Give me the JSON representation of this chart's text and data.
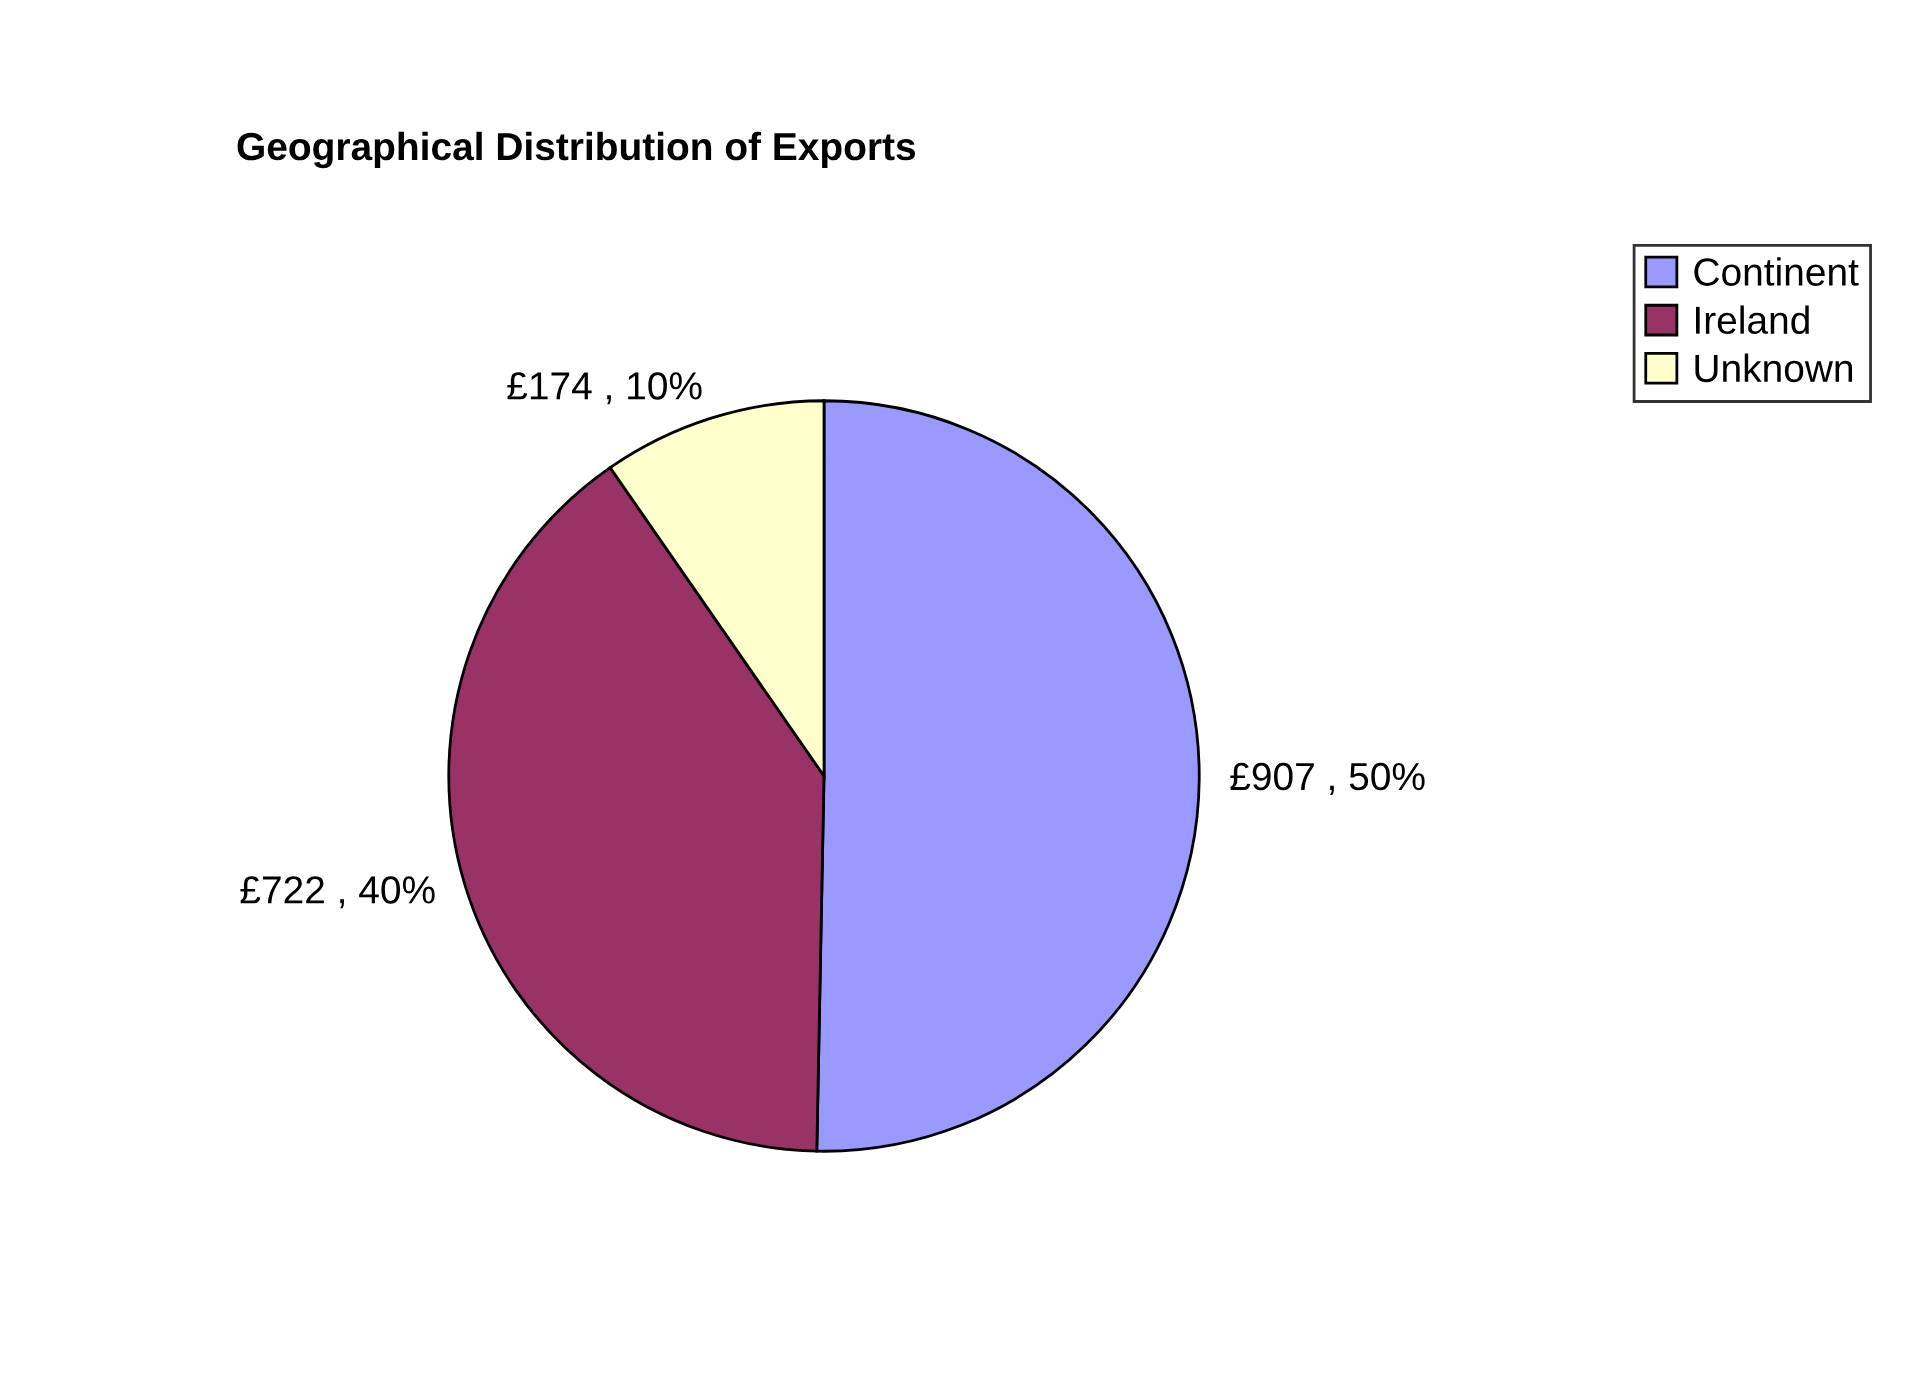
{
  "chart_data": {
    "type": "pie",
    "title": "Geographical Distribution of Exports",
    "categories": [
      "Continent",
      "Ireland",
      "Unknown"
    ],
    "values": [
      907,
      722,
      174
    ],
    "colors": [
      "#9999ff",
      "#993366",
      "#ffffcc"
    ],
    "value_labels": [
      "£907 , 50%",
      "£722 , 40%",
      "£174 , 10%"
    ],
    "legend": "top right"
  }
}
